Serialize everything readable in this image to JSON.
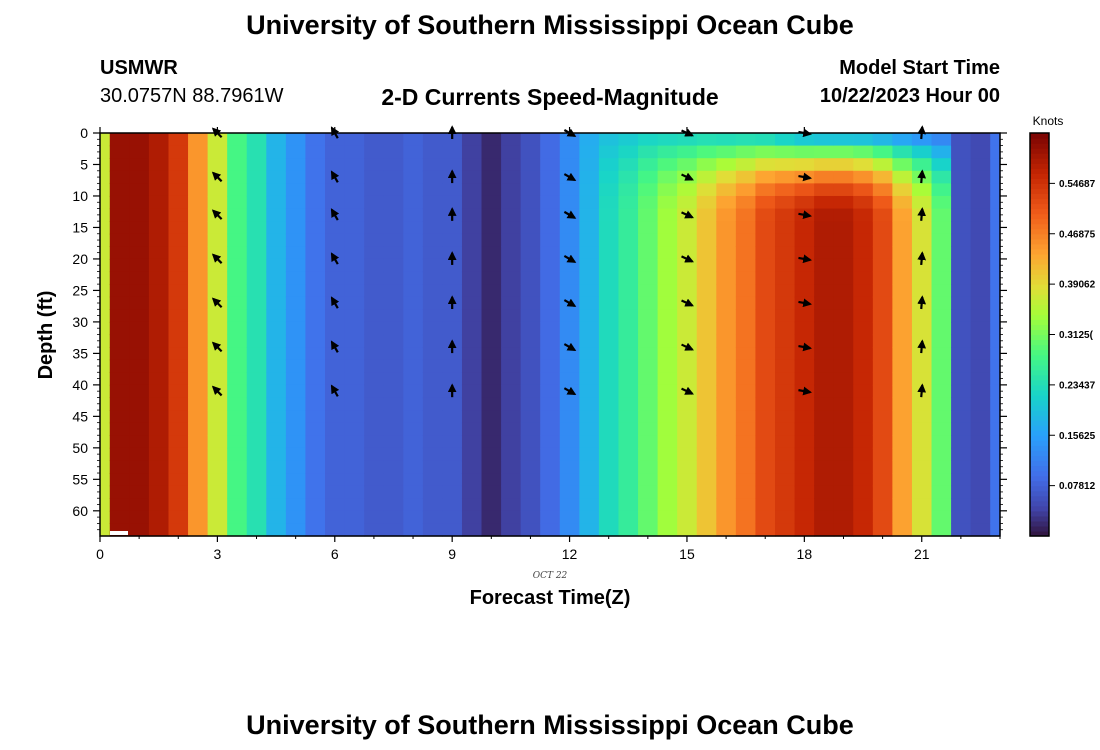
{
  "header": {
    "title": "University of Southern Mississippi Ocean Cube",
    "station_name": "USMWR",
    "station_coords": "30.0757N  88.7961W",
    "subtitle": "2-D Currents Speed-Magnitude",
    "start_label": "Model Start Time",
    "start_value": "10/22/2023 Hour 00"
  },
  "footer": {
    "title": "University of Southern Mississippi Ocean Cube"
  },
  "chart_data": {
    "type": "heatmap",
    "xlabel": "Forecast Time(Z)",
    "ylabel": "Depth (ft)",
    "x_date_label": "OCT 22",
    "xlim": [
      0,
      23
    ],
    "ylim": [
      0,
      64
    ],
    "y_inverted": true,
    "x_ticks": [
      0,
      3,
      6,
      9,
      12,
      15,
      18,
      21
    ],
    "y_ticks": [
      0,
      5,
      10,
      15,
      20,
      25,
      30,
      35,
      40,
      45,
      50,
      55,
      60
    ],
    "hours": [
      0,
      0.5,
      1,
      1.5,
      2,
      2.5,
      3,
      3.5,
      4,
      4.5,
      5,
      5.5,
      6,
      6.5,
      7,
      7.5,
      8,
      8.5,
      9,
      9.5,
      10,
      10.5,
      11,
      11.5,
      12,
      12.5,
      13,
      13.5,
      14,
      14.5,
      15,
      15.5,
      16,
      16.5,
      17,
      17.5,
      18,
      18.5,
      19,
      19.5,
      20,
      20.5,
      21,
      21.5,
      22,
      22.5,
      23
    ],
    "bottom_speed": [
      0.37,
      0.6,
      0.6,
      0.58,
      0.54,
      0.45,
      0.37,
      0.28,
      0.24,
      0.18,
      0.14,
      0.1,
      0.08,
      0.08,
      0.07,
      0.07,
      0.08,
      0.07,
      0.07,
      0.04,
      0.02,
      0.04,
      0.06,
      0.09,
      0.13,
      0.18,
      0.23,
      0.26,
      0.3,
      0.34,
      0.37,
      0.41,
      0.45,
      0.48,
      0.52,
      0.54,
      0.56,
      0.58,
      0.58,
      0.56,
      0.52,
      0.44,
      0.38,
      0.3,
      0.06,
      0.05,
      0.1
    ],
    "surface_speed": [
      0.37,
      0.6,
      0.6,
      0.58,
      0.54,
      0.45,
      0.37,
      0.28,
      0.24,
      0.18,
      0.14,
      0.1,
      0.08,
      0.08,
      0.07,
      0.07,
      0.08,
      0.07,
      0.07,
      0.04,
      0.02,
      0.04,
      0.06,
      0.09,
      0.13,
      0.17,
      0.19,
      0.2,
      0.21,
      0.21,
      0.21,
      0.21,
      0.2,
      0.2,
      0.19,
      0.17,
      0.15,
      0.14,
      0.14,
      0.14,
      0.13,
      0.12,
      0.11,
      0.1,
      0.06,
      0.05,
      0.1
    ],
    "colorbar": {
      "label": "Knots",
      "min": 0.0,
      "max": 0.625,
      "tick_values": [
        0.07812,
        0.15625,
        0.23437,
        0.3125,
        0.39062,
        0.46875,
        0.54687
      ],
      "tick_labels": [
        "0.07812",
        "0.15625",
        "0.23437",
        "0.3125(",
        "0.39062",
        "0.46875",
        "0.54687"
      ]
    },
    "vectors": {
      "times": [
        3,
        6,
        9,
        12,
        15,
        18,
        21
      ],
      "depths": [
        0,
        7,
        13,
        20,
        27,
        34,
        41
      ],
      "angles_deg": [
        -45,
        -30,
        0,
        120,
        115,
        100,
        5
      ]
    }
  }
}
